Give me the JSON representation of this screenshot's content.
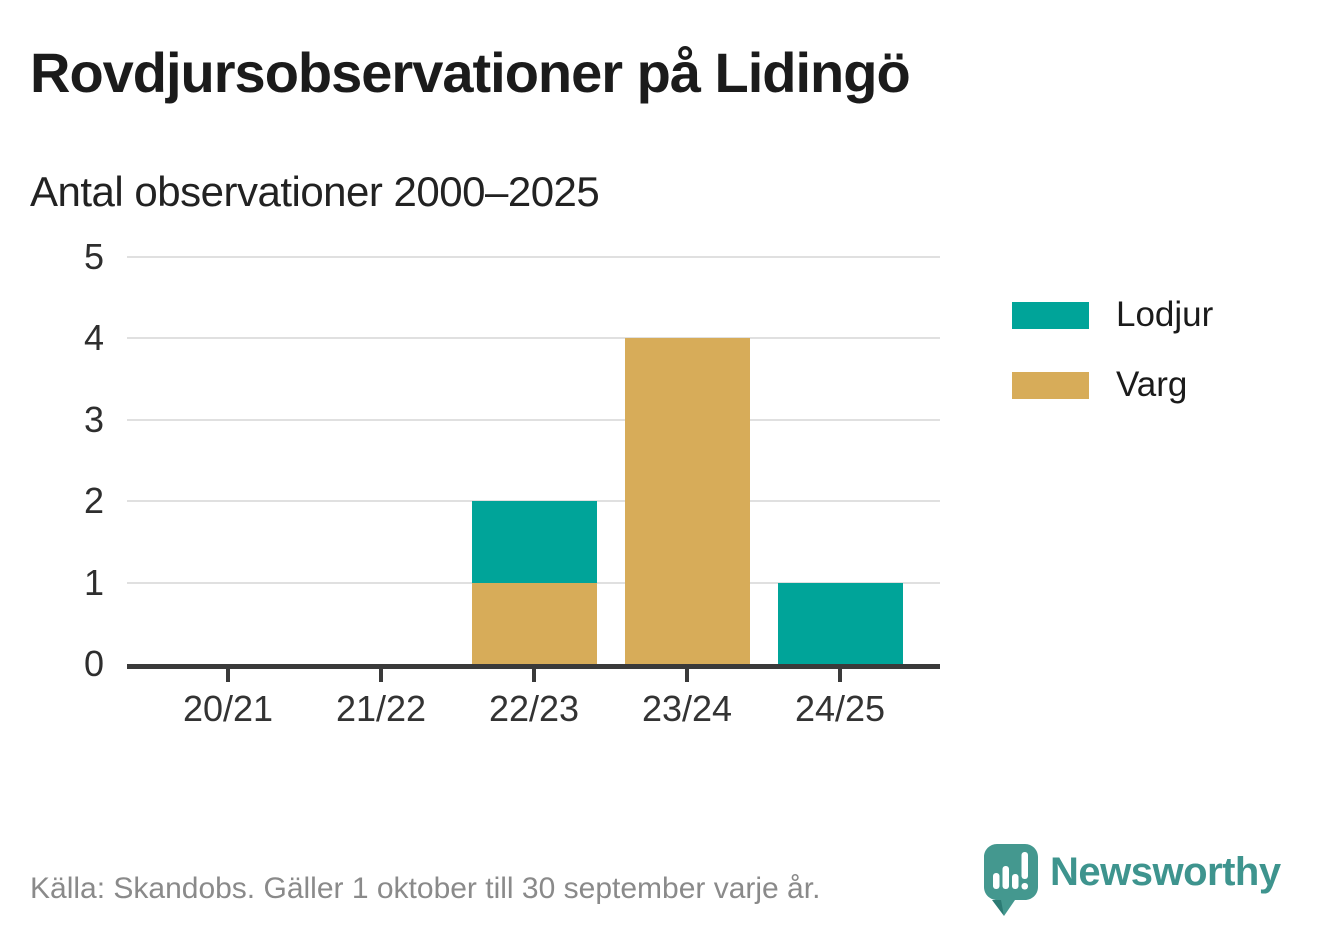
{
  "header": {
    "title": "Rovdjursobservationer på Lidingö",
    "subtitle": "Antal observationer 2000–2025"
  },
  "chart_data": {
    "type": "bar",
    "stacked": true,
    "title": "Rovdjursobservationer på Lidingö",
    "subtitle": "Antal observationer 2000–2025",
    "categories": [
      "20/21",
      "21/22",
      "22/23",
      "23/24",
      "24/25"
    ],
    "series": [
      {
        "name": "Lodjur",
        "color": "#00a499",
        "values": [
          0,
          0,
          1,
          0,
          1
        ]
      },
      {
        "name": "Varg",
        "color": "#d7ac59",
        "values": [
          0,
          0,
          1,
          4,
          0
        ]
      }
    ],
    "stack_order_bottom_to_top": [
      "Varg",
      "Lodjur"
    ],
    "ylim": [
      0,
      5
    ],
    "yticks": [
      0,
      1,
      2,
      3,
      4,
      5
    ],
    "xlabel": "",
    "ylabel": "",
    "grid": true,
    "legend_position": "right"
  },
  "footer": {
    "source": "Källa: Skandobs. Gäller 1 oktober till 30 september varje år.",
    "brand": "Newsworthy"
  },
  "colors": {
    "teal": "#00a499",
    "gold": "#d7ac59",
    "axis": "#3a3a3a",
    "grid": "#e0e0e0",
    "title_text": "#1b1b1b",
    "footer_text": "#8a8a8a",
    "brand_teal": "#3e948e"
  }
}
